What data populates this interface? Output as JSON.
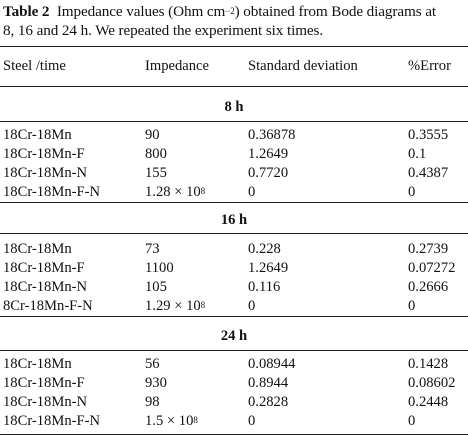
{
  "caption": {
    "label": "Table 2",
    "text_before_sup": "Impedance values (Ohm cm",
    "sup": "−2",
    "text_line1_after_sup": ") obtained from Bode diagrams at",
    "text_line2": "8, 16 and 24 h. We repeated the experiment six times."
  },
  "headers": {
    "steel_time": "Steel /time",
    "impedance": "Impedance",
    "std_dev": "Standard deviation",
    "error": "%Error"
  },
  "sections": [
    {
      "title": "8 h",
      "rows": [
        {
          "steel": "18Cr-18Mn",
          "imp": "90",
          "imp_sup": "",
          "sd": "0.36878",
          "err": "0.3555"
        },
        {
          "steel": "18Cr-18Mn-F",
          "imp": "800",
          "imp_sup": "",
          "sd": "1.2649",
          "err": "0.1"
        },
        {
          "steel": "18Cr-18Mn-N",
          "imp": "155",
          "imp_sup": "",
          "sd": "0.7720",
          "err": "0.4387"
        },
        {
          "steel": "18Cr-18Mn-F-N",
          "imp": "1.28 × 10",
          "imp_sup": "8",
          "sd": "0",
          "err": "0"
        }
      ]
    },
    {
      "title": "16 h",
      "rows": [
        {
          "steel": "18Cr-18Mn",
          "imp": "73",
          "imp_sup": "",
          "sd": "0.228",
          "err": "0.2739"
        },
        {
          "steel": "18Cr-18Mn-F",
          "imp": "1100",
          "imp_sup": "",
          "sd": "1.2649",
          "err": "0.07272"
        },
        {
          "steel": "18Cr-18Mn-N",
          "imp": "105",
          "imp_sup": "",
          "sd": "0.116",
          "err": "0.2666"
        },
        {
          "steel": "8Cr-18Mn-F-N",
          "imp": "1.29 × 10",
          "imp_sup": "8",
          "sd": "0",
          "err": "0"
        }
      ]
    },
    {
      "title": "24 h",
      "rows": [
        {
          "steel": "18Cr-18Mn",
          "imp": "56",
          "imp_sup": "",
          "sd": "0.08944",
          "err": "0.1428"
        },
        {
          "steel": "18Cr-18Mn-F",
          "imp": "930",
          "imp_sup": "",
          "sd": "0.8944",
          "err": "0.08602"
        },
        {
          "steel": "18Cr-18Mn-N",
          "imp": "98",
          "imp_sup": "",
          "sd": "0.2828",
          "err": "0.2448"
        },
        {
          "steel": "18Cr-18Mn-F-N",
          "imp": "1.5 × 10",
          "imp_sup": "8",
          "sd": "0",
          "err": "0"
        }
      ]
    }
  ]
}
